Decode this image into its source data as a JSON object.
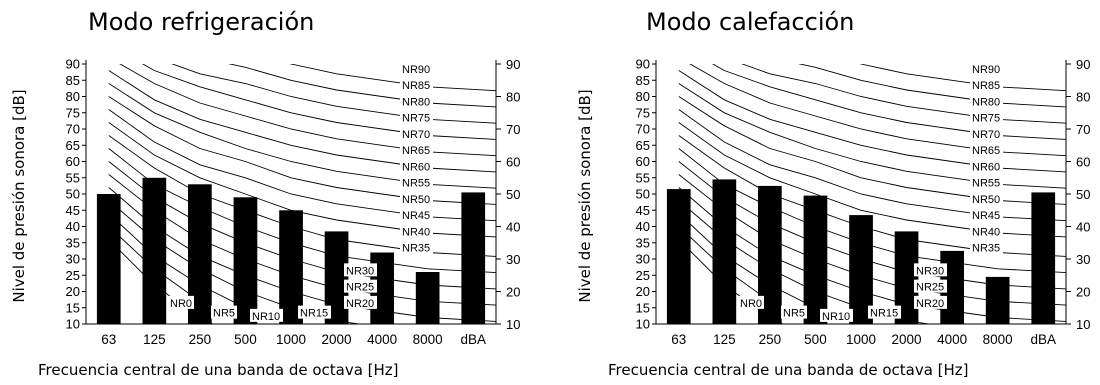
{
  "colors": {
    "bar": "#000000",
    "curve": "#000000",
    "background": "#ffffff"
  },
  "nr_curves": {
    "labels": [
      "NR0",
      "NR5",
      "NR10",
      "NR15",
      "NR20",
      "NR25",
      "NR30",
      "NR35",
      "NR40",
      "NR45",
      "NR50",
      "NR55",
      "NR60",
      "NR65",
      "NR70",
      "NR75",
      "NR80",
      "NR85",
      "NR90"
    ],
    "values_dB": {
      "NR0": [
        36,
        22,
        12,
        5,
        0,
        -4,
        -6,
        -8
      ],
      "NR5": [
        40,
        27,
        17,
        10,
        5,
        1,
        -1,
        -3
      ],
      "NR10": [
        44,
        31,
        22,
        15,
        10,
        6,
        4,
        2
      ],
      "NR15": [
        48,
        36,
        27,
        20,
        15,
        11,
        9,
        7
      ],
      "NR20": [
        52,
        40,
        31,
        25,
        20,
        16,
        14,
        12
      ],
      "NR25": [
        56,
        45,
        36,
        30,
        25,
        21,
        19,
        17
      ],
      "NR30": [
        60,
        49,
        41,
        35,
        30,
        26,
        24,
        22
      ],
      "NR35": [
        64,
        53,
        46,
        40,
        35,
        31,
        29,
        27
      ],
      "NR40": [
        68,
        58,
        50,
        45,
        40,
        36,
        34,
        32
      ],
      "NR45": [
        72,
        62,
        55,
        50,
        45,
        42,
        40,
        38
      ],
      "NR50": [
        76,
        66,
        59,
        55,
        50,
        47,
        45,
        43
      ],
      "NR55": [
        80,
        71,
        64,
        60,
        55,
        52,
        50,
        48
      ],
      "NR60": [
        84,
        75,
        69,
        64,
        60,
        57,
        55,
        53
      ],
      "NR65": [
        88,
        79,
        73,
        69,
        65,
        62,
        60,
        58
      ],
      "NR70": [
        92,
        84,
        78,
        74,
        70,
        67,
        65,
        63
      ],
      "NR75": [
        96,
        88,
        83,
        79,
        75,
        72,
        70,
        68
      ],
      "NR80": [
        100,
        92,
        87,
        84,
        80,
        77,
        75,
        73
      ],
      "NR85": [
        104,
        97,
        92,
        89,
        85,
        82,
        80,
        78
      ],
      "NR90": [
        108,
        101,
        96,
        94,
        90,
        87,
        85,
        83
      ]
    }
  },
  "chart_data": [
    {
      "type": "bar",
      "title": "Modo refrigeración",
      "xlabel": "Frecuencia central de una banda de octava [Hz]",
      "ylabel": "Nivel de presión sonora [dB]",
      "categories": [
        "63",
        "125",
        "250",
        "500",
        "1000",
        "2000",
        "4000",
        "8000",
        "dBA"
      ],
      "values": [
        50,
        55,
        53,
        49,
        45,
        38.5,
        32,
        26,
        50.5
      ],
      "ylim": [
        10,
        90
      ],
      "yticks": [
        "10",
        "15",
        "20",
        "25",
        "30",
        "35",
        "40",
        "45",
        "50",
        "55",
        "60",
        "65",
        "70",
        "75",
        "80",
        "85",
        "90"
      ],
      "yticks_right": [
        "10",
        "20",
        "30",
        "40",
        "50",
        "60",
        "70",
        "80",
        "90"
      ],
      "grid": false,
      "legend": "none"
    },
    {
      "type": "bar",
      "title": "Modo calefacción",
      "xlabel": "Frecuencia central de una banda de octava [Hz]",
      "ylabel": "Nivel de presión sonora [dB]",
      "categories": [
        "63",
        "125",
        "250",
        "500",
        "1000",
        "2000",
        "4000",
        "8000",
        "dBA"
      ],
      "values": [
        51.5,
        54.5,
        52.5,
        49.5,
        43.5,
        38.5,
        32.5,
        24.5,
        50.5
      ],
      "ylim": [
        10,
        90
      ],
      "yticks": [
        "10",
        "15",
        "20",
        "25",
        "30",
        "35",
        "40",
        "45",
        "50",
        "55",
        "60",
        "65",
        "70",
        "75",
        "80",
        "85",
        "90"
      ],
      "yticks_right": [
        "10",
        "20",
        "30",
        "40",
        "50",
        "60",
        "70",
        "80",
        "90"
      ],
      "grid": false,
      "legend": "none"
    }
  ]
}
